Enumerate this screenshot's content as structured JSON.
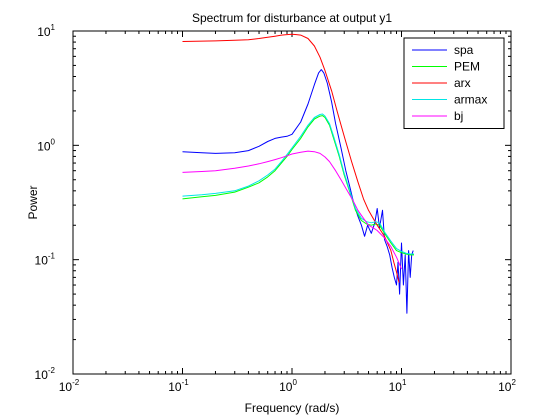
{
  "chart_data": {
    "type": "line",
    "title": "Spectrum for disturbance at output y1",
    "xlabel": "Frequency (rad/s)",
    "ylabel": "Power",
    "xscale": "log",
    "yscale": "log",
    "xlim": [
      0.01,
      100
    ],
    "ylim": [
      0.01,
      10
    ],
    "xticks": [
      {
        "value": 0.01,
        "base": "10",
        "exp": "-2"
      },
      {
        "value": 0.1,
        "base": "10",
        "exp": "-1"
      },
      {
        "value": 1,
        "base": "10",
        "exp": "0"
      },
      {
        "value": 10,
        "base": "10",
        "exp": "1"
      },
      {
        "value": 100,
        "base": "10",
        "exp": "2"
      }
    ],
    "yticks": [
      {
        "value": 0.01,
        "base": "10",
        "exp": "-2"
      },
      {
        "value": 0.1,
        "base": "10",
        "exp": "-1"
      },
      {
        "value": 1,
        "base": "10",
        "exp": "0"
      },
      {
        "value": 10,
        "base": "10",
        "exp": "1"
      }
    ],
    "grid": false,
    "legend_position": "top-right",
    "series": [
      {
        "name": "spa",
        "color": "#0000ff",
        "points": [
          [
            0.1,
            0.88
          ],
          [
            0.15,
            0.86
          ],
          [
            0.2,
            0.85
          ],
          [
            0.3,
            0.86
          ],
          [
            0.4,
            0.9
          ],
          [
            0.5,
            0.98
          ],
          [
            0.6,
            1.08
          ],
          [
            0.7,
            1.15
          ],
          [
            0.8,
            1.18
          ],
          [
            0.9,
            1.2
          ],
          [
            1.0,
            1.25
          ],
          [
            1.2,
            1.6
          ],
          [
            1.4,
            2.3
          ],
          [
            1.6,
            3.4
          ],
          [
            1.75,
            4.3
          ],
          [
            1.85,
            4.6
          ],
          [
            1.95,
            4.3
          ],
          [
            2.1,
            3.5
          ],
          [
            2.3,
            2.4
          ],
          [
            2.5,
            1.55
          ],
          [
            2.8,
            0.95
          ],
          [
            3.1,
            0.6
          ],
          [
            3.4,
            0.42
          ],
          [
            3.7,
            0.3
          ],
          [
            4.0,
            0.24
          ],
          [
            4.3,
            0.2
          ],
          [
            4.6,
            0.16
          ],
          [
            4.9,
            0.2
          ],
          [
            5.3,
            0.17
          ],
          [
            5.7,
            0.21
          ],
          [
            6.0,
            0.28
          ],
          [
            6.3,
            0.19
          ],
          [
            6.7,
            0.27
          ],
          [
            7.0,
            0.15
          ],
          [
            7.4,
            0.13
          ],
          [
            7.8,
            0.11
          ],
          [
            8.2,
            0.085
          ],
          [
            8.6,
            0.07
          ],
          [
            9.0,
            0.06
          ],
          [
            9.3,
            0.095
          ],
          [
            9.6,
            0.05
          ],
          [
            10.0,
            0.14
          ],
          [
            10.4,
            0.06
          ],
          [
            10.8,
            0.11
          ],
          [
            11.2,
            0.034
          ],
          [
            11.6,
            0.12
          ],
          [
            12.0,
            0.07
          ],
          [
            12.4,
            0.11
          ],
          [
            12.8,
            0.12
          ]
        ]
      },
      {
        "name": "PEM",
        "color": "#00ff00",
        "points": [
          [
            0.1,
            0.34
          ],
          [
            0.15,
            0.355
          ],
          [
            0.2,
            0.365
          ],
          [
            0.3,
            0.39
          ],
          [
            0.4,
            0.43
          ],
          [
            0.5,
            0.47
          ],
          [
            0.6,
            0.53
          ],
          [
            0.7,
            0.6
          ],
          [
            0.8,
            0.7
          ],
          [
            0.9,
            0.8
          ],
          [
            1.0,
            0.92
          ],
          [
            1.2,
            1.15
          ],
          [
            1.4,
            1.45
          ],
          [
            1.6,
            1.7
          ],
          [
            1.8,
            1.8
          ],
          [
            1.9,
            1.82
          ],
          [
            2.0,
            1.75
          ],
          [
            2.2,
            1.5
          ],
          [
            2.4,
            1.15
          ],
          [
            2.7,
            0.8
          ],
          [
            3.0,
            0.55
          ],
          [
            3.4,
            0.38
          ],
          [
            3.8,
            0.27
          ],
          [
            4.3,
            0.22
          ],
          [
            4.8,
            0.205
          ],
          [
            5.3,
            0.2
          ],
          [
            5.8,
            0.205
          ],
          [
            6.3,
            0.2
          ],
          [
            7.0,
            0.17
          ],
          [
            8.0,
            0.14
          ],
          [
            9.0,
            0.12
          ],
          [
            10.0,
            0.115
          ],
          [
            11.0,
            0.112
          ],
          [
            12.0,
            0.11
          ],
          [
            13.0,
            0.11
          ]
        ]
      },
      {
        "name": "arx",
        "color": "#ff0000",
        "points": [
          [
            0.1,
            8.1
          ],
          [
            0.2,
            8.2
          ],
          [
            0.3,
            8.3
          ],
          [
            0.4,
            8.4
          ],
          [
            0.5,
            8.6
          ],
          [
            0.6,
            8.8
          ],
          [
            0.7,
            9.0
          ],
          [
            0.8,
            9.2
          ],
          [
            0.9,
            9.3
          ],
          [
            1.0,
            9.35
          ],
          [
            1.1,
            9.3
          ],
          [
            1.2,
            9.2
          ],
          [
            1.4,
            8.6
          ],
          [
            1.6,
            7.4
          ],
          [
            1.8,
            5.9
          ],
          [
            2.0,
            4.5
          ],
          [
            2.3,
            3.0
          ],
          [
            2.6,
            1.95
          ],
          [
            3.0,
            1.2
          ],
          [
            3.5,
            0.72
          ],
          [
            4.0,
            0.48
          ],
          [
            4.5,
            0.34
          ],
          [
            5.0,
            0.27
          ],
          [
            5.5,
            0.23
          ],
          [
            6.0,
            0.2
          ],
          [
            7.0,
            0.16
          ],
          [
            8.0,
            0.12
          ],
          [
            8.5,
            0.095
          ],
          [
            9.0,
            0.078
          ],
          [
            9.5,
            0.063
          ]
        ]
      },
      {
        "name": "armax",
        "color": "#00e5e5",
        "points": [
          [
            0.1,
            0.36
          ],
          [
            0.15,
            0.37
          ],
          [
            0.2,
            0.38
          ],
          [
            0.3,
            0.4
          ],
          [
            0.4,
            0.44
          ],
          [
            0.5,
            0.49
          ],
          [
            0.6,
            0.55
          ],
          [
            0.7,
            0.62
          ],
          [
            0.8,
            0.72
          ],
          [
            0.9,
            0.83
          ],
          [
            1.0,
            0.95
          ],
          [
            1.2,
            1.2
          ],
          [
            1.4,
            1.5
          ],
          [
            1.6,
            1.75
          ],
          [
            1.8,
            1.86
          ],
          [
            1.9,
            1.88
          ],
          [
            2.0,
            1.8
          ],
          [
            2.2,
            1.55
          ],
          [
            2.4,
            1.2
          ],
          [
            2.7,
            0.83
          ],
          [
            3.0,
            0.57
          ],
          [
            3.4,
            0.39
          ],
          [
            3.8,
            0.28
          ],
          [
            4.3,
            0.23
          ],
          [
            4.8,
            0.215
          ],
          [
            5.3,
            0.21
          ],
          [
            5.8,
            0.215
          ],
          [
            6.3,
            0.21
          ],
          [
            7.0,
            0.175
          ],
          [
            8.0,
            0.145
          ],
          [
            9.0,
            0.125
          ],
          [
            10.0,
            0.118
          ],
          [
            11.0,
            0.114
          ],
          [
            12.0,
            0.112
          ],
          [
            13.0,
            0.112
          ]
        ]
      },
      {
        "name": "bj",
        "color": "#ff00ff",
        "points": [
          [
            0.1,
            0.58
          ],
          [
            0.15,
            0.59
          ],
          [
            0.2,
            0.6
          ],
          [
            0.3,
            0.63
          ],
          [
            0.4,
            0.66
          ],
          [
            0.5,
            0.69
          ],
          [
            0.6,
            0.72
          ],
          [
            0.7,
            0.75
          ],
          [
            0.8,
            0.78
          ],
          [
            0.9,
            0.81
          ],
          [
            1.0,
            0.84
          ],
          [
            1.2,
            0.87
          ],
          [
            1.4,
            0.89
          ],
          [
            1.6,
            0.88
          ],
          [
            1.8,
            0.85
          ],
          [
            2.0,
            0.79
          ],
          [
            2.2,
            0.72
          ],
          [
            2.5,
            0.6
          ],
          [
            2.8,
            0.5
          ],
          [
            3.2,
            0.4
          ],
          [
            3.6,
            0.33
          ],
          [
            4.0,
            0.27
          ],
          [
            4.5,
            0.23
          ],
          [
            5.0,
            0.2
          ],
          [
            5.5,
            0.19
          ],
          [
            6.0,
            0.18
          ],
          [
            7.0,
            0.155
          ],
          [
            8.0,
            0.13
          ],
          [
            9.0,
            0.105
          ],
          [
            10.0,
            0.083
          ]
        ]
      }
    ]
  }
}
